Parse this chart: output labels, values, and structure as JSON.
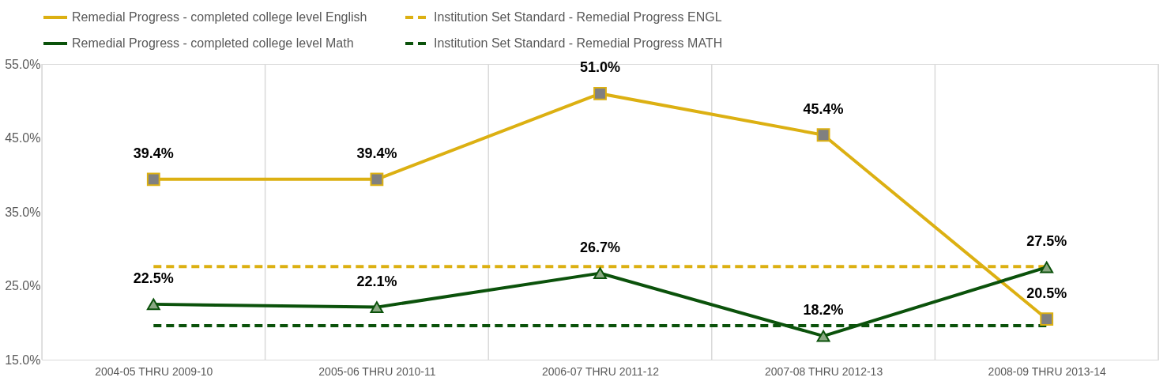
{
  "chart_data": {
    "type": "line",
    "categories": [
      "2004-05 THRU 2009-10",
      "2005-06 THRU 2010-11",
      "2006-07 THRU 2011-12",
      "2007-08 THRU 2012-13",
      "2008-09 THRU 2013-14"
    ],
    "series": [
      {
        "name": "Remedial Progress - completed college level English",
        "color": "#dcb012",
        "values": [
          39.4,
          39.4,
          51.0,
          45.4,
          20.5
        ],
        "marker": "square",
        "line_style": "solid",
        "value_labels": [
          "39.4%",
          "39.4%",
          "51.0%",
          "45.4%",
          "20.5%"
        ]
      },
      {
        "name": "Institution Set Standard - Remedial Progress ENGL",
        "color": "#dcb012",
        "values": [
          27.6,
          27.6,
          27.6,
          27.6,
          27.6
        ],
        "marker": "none",
        "line_style": "dashed"
      },
      {
        "name": "Remedial Progress - completed college level Math",
        "color": "#0b520b",
        "values": [
          22.5,
          22.1,
          26.7,
          18.2,
          27.5
        ],
        "marker": "triangle",
        "line_style": "solid",
        "value_labels": [
          "22.5%",
          "22.1%",
          "26.7%",
          "18.2%",
          "27.5%"
        ]
      },
      {
        "name": "Institution Set Standard - Remedial Progress MATH",
        "color": "#0b520b",
        "values": [
          19.6,
          19.6,
          19.6,
          19.6,
          19.6
        ],
        "marker": "none",
        "line_style": "dashed"
      }
    ],
    "ylim": [
      15,
      55
    ],
    "yticks": [
      {
        "value": 15,
        "label": "15.0%"
      },
      {
        "value": 25,
        "label": "25.0%"
      },
      {
        "value": 35,
        "label": "35.0%"
      },
      {
        "value": 45,
        "label": "45.0%"
      },
      {
        "value": 55,
        "label": "55.0%"
      }
    ],
    "grid": "x",
    "legend": "top"
  }
}
